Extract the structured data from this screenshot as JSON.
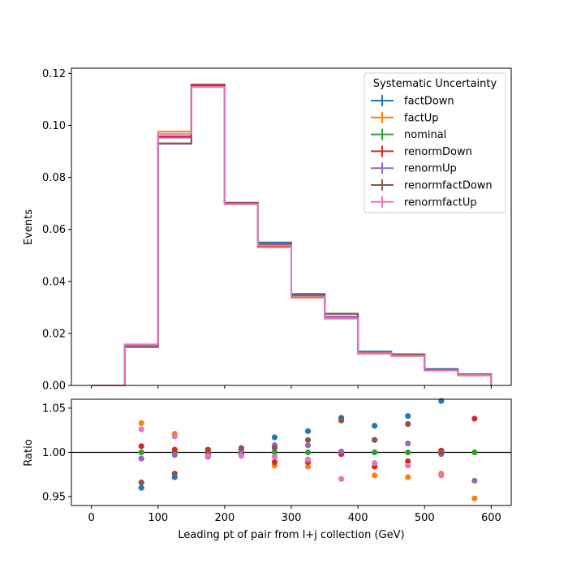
{
  "chart_data": [
    {
      "type": "line",
      "drawstyle": "steps",
      "xlim": [
        -30,
        630
      ],
      "ylim": [
        0,
        0.122
      ],
      "ylabel": "Events",
      "yticks": [
        "0.00",
        "0.02",
        "0.04",
        "0.06",
        "0.08",
        "0.10",
        "0.12"
      ],
      "ytick_values": [
        0.0,
        0.02,
        0.04,
        0.06,
        0.08,
        0.1,
        0.12
      ],
      "bin_edges": [
        0,
        50,
        100,
        150,
        200,
        250,
        300,
        350,
        400,
        450,
        500,
        550,
        600
      ],
      "legend": {
        "title": "Systematic Uncertainty",
        "placement": "top-right"
      },
      "series": [
        {
          "name": "factDown",
          "color": "#1f77b4",
          "values": [
            0.0,
            0.0148,
            0.0929,
            0.1148,
            0.0699,
            0.055,
            0.0352,
            0.0276,
            0.013,
            0.012,
            0.0063,
            0.0042
          ]
        },
        {
          "name": "factUp",
          "color": "#ff7f0e",
          "values": [
            0.0,
            0.0158,
            0.0976,
            0.115,
            0.0697,
            0.0532,
            0.0338,
            0.0257,
            0.0123,
            0.0113,
            0.0058,
            0.0038
          ]
        },
        {
          "name": "nominal",
          "color": "#2ca02c",
          "values": [
            0.0,
            0.0153,
            0.0955,
            0.1153,
            0.0699,
            0.054,
            0.0344,
            0.0265,
            0.0125,
            0.0116,
            0.0059,
            0.0041
          ]
        },
        {
          "name": "renormDown",
          "color": "#d62728",
          "values": [
            0.0,
            0.0154,
            0.0958,
            0.1157,
            0.0698,
            0.0535,
            0.034,
            0.0264,
            0.0123,
            0.0115,
            0.006,
            0.0043
          ]
        },
        {
          "name": "renormUp",
          "color": "#9467bd",
          "values": [
            0.0,
            0.0152,
            0.0953,
            0.1148,
            0.07,
            0.0545,
            0.0347,
            0.0265,
            0.0126,
            0.0117,
            0.0059,
            0.004
          ]
        },
        {
          "name": "renormfactDown",
          "color": "#8c564b",
          "values": [
            0.0,
            0.0148,
            0.0931,
            0.1152,
            0.0703,
            0.0543,
            0.0348,
            0.0275,
            0.0127,
            0.012,
            0.006,
            0.0043
          ]
        },
        {
          "name": "renormfactUp",
          "color": "#e377c2",
          "values": [
            0.0,
            0.0157,
            0.0967,
            0.1148,
            0.0697,
            0.0538,
            0.0341,
            0.0257,
            0.0124,
            0.0114,
            0.0057,
            0.004
          ]
        }
      ]
    },
    {
      "type": "scatter",
      "xlim": [
        -30,
        630
      ],
      "ylim": [
        0.94,
        1.06
      ],
      "xlabel": "Leading pt of pair from l+j collection (GeV)",
      "ylabel": "Ratio",
      "xticks": [
        "0",
        "100",
        "200",
        "300",
        "400",
        "500",
        "600"
      ],
      "xtick_values": [
        0,
        100,
        200,
        300,
        400,
        500,
        600
      ],
      "yticks": [
        "0.95",
        "1.00",
        "1.05"
      ],
      "ytick_values": [
        0.95,
        1.0,
        1.05
      ],
      "reference_line": 1.0,
      "x": [
        75,
        125,
        175,
        225,
        275,
        325,
        375,
        425,
        475,
        525,
        575
      ],
      "series": [
        {
          "name": "factDown",
          "color": "#1f77b4",
          "values": [
            0.96,
            0.972,
            0.996,
            1.003,
            1.017,
            1.024,
            1.039,
            1.03,
            1.041,
            1.058,
            null
          ]
        },
        {
          "name": "factUp",
          "color": "#ff7f0e",
          "values": [
            1.033,
            1.021,
            0.997,
            0.997,
            0.985,
            0.984,
            0.97,
            0.974,
            0.972,
            0.976,
            0.948
          ]
        },
        {
          "name": "nominal",
          "color": "#2ca02c",
          "values": [
            1.0,
            1.0,
            1.0,
            1.0,
            1.0,
            1.0,
            1.0,
            1.0,
            1.0,
            1.0,
            1.0
          ]
        },
        {
          "name": "renormDown",
          "color": "#d62728",
          "values": [
            1.007,
            1.003,
            1.003,
            0.998,
            0.989,
            0.989,
            0.998,
            0.984,
            0.99,
            1.002,
            1.038
          ]
        },
        {
          "name": "renormUp",
          "color": "#9467bd",
          "values": [
            0.993,
            0.997,
            0.995,
            1.002,
            1.008,
            1.008,
            1.001,
            1.014,
            1.01,
            0.998,
            0.968
          ]
        },
        {
          "name": "renormfactDown",
          "color": "#8c564b",
          "values": [
            0.966,
            0.976,
            0.999,
            1.005,
            1.005,
            1.014,
            1.036,
            1.014,
            1.032,
            1.0,
            null
          ]
        },
        {
          "name": "renormfactUp",
          "color": "#e377c2",
          "values": [
            1.026,
            1.018,
            0.996,
            0.996,
            0.995,
            0.992,
            0.97,
            0.988,
            0.985,
            0.974,
            null
          ]
        }
      ]
    }
  ]
}
